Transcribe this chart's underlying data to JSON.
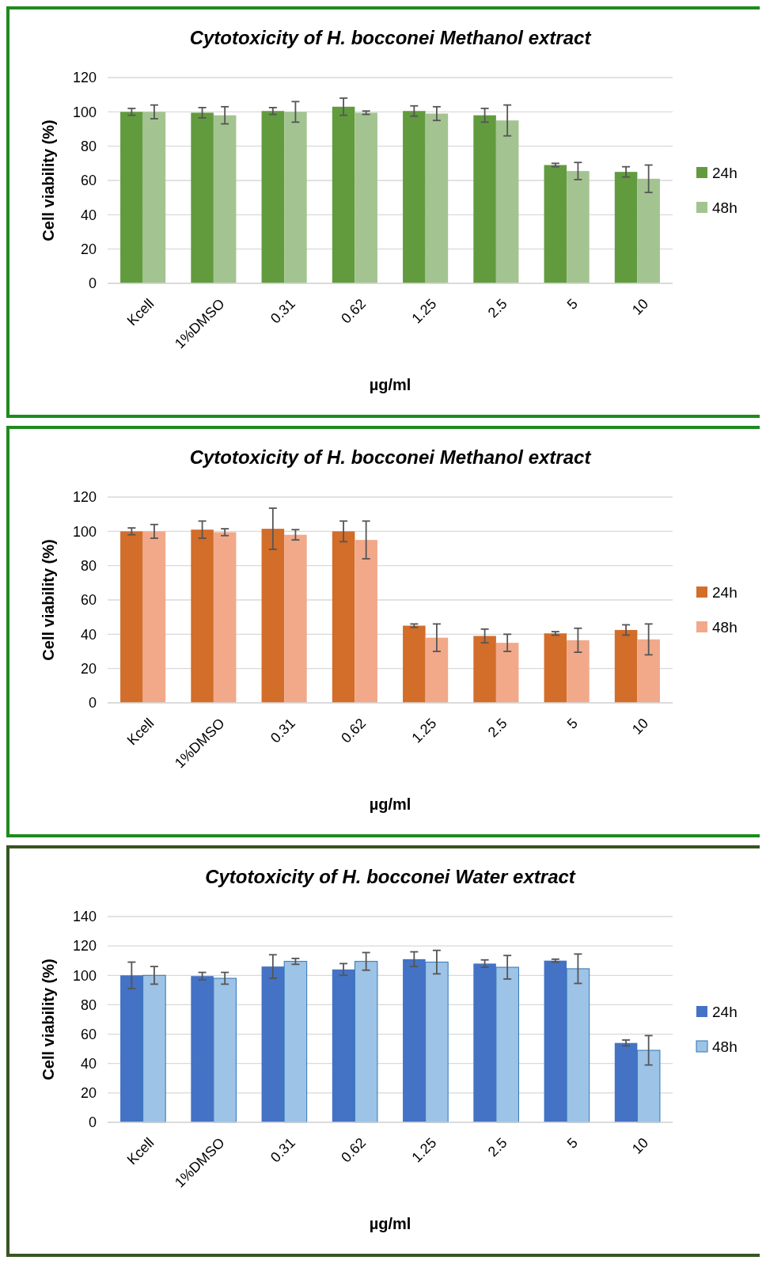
{
  "chart_data": [
    {
      "type": "bar",
      "title": "Cytotoxicity of H. bocconei Methanol extract",
      "xlabel": "µg/ml",
      "ylabel": "Cell viability (%)",
      "categories": [
        "Kcell",
        "1%DMSO",
        "0.31",
        "0.62",
        "1.25",
        "2.5",
        "5",
        "10"
      ],
      "ylim": [
        0,
        120
      ],
      "yticks": [
        0,
        20,
        40,
        60,
        80,
        100,
        120
      ],
      "grid": "y",
      "legend": "right",
      "series": [
        {
          "name": "24h",
          "color": "#629b3e",
          "values": [
            100,
            99.5,
            100.5,
            103,
            100.5,
            98,
            69,
            65
          ],
          "errors": [
            2,
            3,
            2,
            5,
            3,
            4,
            1,
            3
          ]
        },
        {
          "name": "48h",
          "color": "#a3c490",
          "values": [
            100,
            98,
            100,
            99.5,
            99,
            95,
            65.5,
            61
          ],
          "errors": [
            4,
            5,
            6,
            1,
            4,
            9,
            5,
            8
          ]
        }
      ]
    },
    {
      "type": "bar",
      "title": "Cytotoxicity of H. bocconei Methanol extract",
      "xlabel": "µg/ml",
      "ylabel": "Cell viability (%)",
      "categories": [
        "Kcell",
        "1%DMSO",
        "0.31",
        "0.62",
        "1.25",
        "2.5",
        "5",
        "10"
      ],
      "ylim": [
        0,
        120
      ],
      "yticks": [
        0,
        20,
        40,
        60,
        80,
        100,
        120
      ],
      "grid": "y",
      "legend": "right",
      "series": [
        {
          "name": "24h",
          "color": "#d26d2a",
          "values": [
            100,
            101,
            101.5,
            100,
            45,
            39,
            40.5,
            42.5
          ],
          "errors": [
            2,
            5,
            12,
            6,
            1,
            4,
            1,
            3
          ]
        },
        {
          "name": "48h",
          "color": "#f1a98a",
          "values": [
            100,
            99.5,
            98,
            95,
            38,
            35,
            36.5,
            37
          ],
          "errors": [
            4,
            2,
            3,
            11,
            8,
            5,
            7,
            9
          ]
        }
      ]
    },
    {
      "type": "bar",
      "title": "Cytotoxicity of H. bocconei Water extract",
      "xlabel": "µg/ml",
      "ylabel": "Cell viability (%)",
      "categories": [
        "Kcell",
        "1%DMSO",
        "0.31",
        "0.62",
        "1.25",
        "2.5",
        "5",
        "10"
      ],
      "ylim": [
        0,
        140
      ],
      "yticks": [
        0,
        20,
        40,
        60,
        80,
        100,
        120,
        140
      ],
      "grid": "y",
      "legend": "right",
      "series": [
        {
          "name": "24h",
          "color": "#4472c4",
          "values": [
            100,
            99.5,
            106,
            104,
            111,
            108,
            110,
            54
          ],
          "errors": [
            9,
            2.5,
            8,
            4,
            5,
            2.5,
            1,
            2
          ]
        },
        {
          "name": "48h",
          "color": "#9dc3e6",
          "values": [
            100,
            98,
            109.5,
            109.5,
            109,
            105.5,
            104.5,
            49
          ],
          "errors": [
            6,
            4,
            2,
            6,
            8,
            8,
            10,
            10
          ]
        }
      ]
    }
  ]
}
